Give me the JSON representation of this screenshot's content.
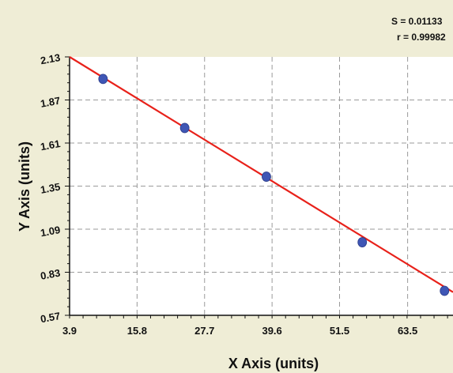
{
  "chart_data": {
    "type": "scatter",
    "xlabel": "X Axis (units)",
    "ylabel": "Y Axis (units)",
    "xlim": [
      3.9,
      71.5
    ],
    "ylim": [
      0.57,
      2.13
    ],
    "xticks": [
      "3.9",
      "15.8",
      "27.7",
      "39.6",
      "51.5",
      "63.5"
    ],
    "yticks": [
      "2.13",
      "1.87",
      "1.61",
      "1.35",
      "1.09",
      "0.83",
      "0.57"
    ],
    "grid": true,
    "points": [
      {
        "x": 9.8,
        "y": 1.997
      },
      {
        "x": 24.2,
        "y": 1.701
      },
      {
        "x": 38.6,
        "y": 1.407
      },
      {
        "x": 55.5,
        "y": 1.011
      },
      {
        "x": 70.0,
        "y": 0.718
      }
    ],
    "fit": {
      "x": [
        3.9,
        71.5
      ],
      "y": [
        2.13,
        0.71
      ]
    },
    "stats": {
      "s_label": "S = 0.01133",
      "r_label": "r = 0.99982"
    },
    "colors": {
      "background": "#efedd6",
      "plot_bg": "#ffffff",
      "line": "#e8211a",
      "point": "#3f56b5",
      "grid": "#9a9a9a"
    }
  }
}
